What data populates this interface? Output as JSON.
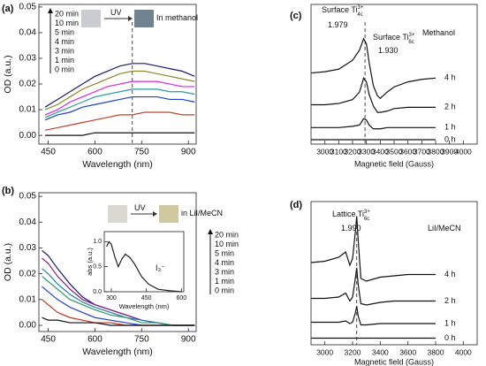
{
  "chart_data": [
    {
      "type": "line",
      "panel": "(a)",
      "xlabel": "Wavelength (nm)",
      "ylabel": "OD (a.u.)",
      "annotations": [
        {
          "text": "UV"
        },
        {
          "text": "In methanol"
        }
      ],
      "xlim": [
        420,
        925
      ],
      "ylim": [
        -0.0034,
        0.051
      ],
      "xticks": [
        450,
        600,
        750,
        900
      ],
      "yticks": [
        {
          "value": 0,
          "label": "0.00"
        },
        0.01,
        0.02,
        0.03,
        0.04,
        0.05
      ],
      "vlines": [
        720
      ],
      "x": [
        440,
        480,
        520,
        560,
        600,
        640,
        680,
        720,
        760,
        800,
        840,
        880,
        920
      ],
      "series": [
        {
          "name": "20 min",
          "color": "#1a1a6e",
          "values": [
            0.011,
            0.014,
            0.017,
            0.02,
            0.023,
            0.025,
            0.027,
            0.028,
            0.028,
            0.027,
            0.026,
            0.025,
            0.023
          ]
        },
        {
          "name": "10 min",
          "color": "#8a8a2a",
          "values": [
            0.01,
            0.012,
            0.015,
            0.018,
            0.02,
            0.022,
            0.024,
            0.025,
            0.025,
            0.024,
            0.023,
            0.022,
            0.021
          ]
        },
        {
          "name": "5 min",
          "color": "#e020e0",
          "values": [
            0.008,
            0.01,
            0.013,
            0.015,
            0.017,
            0.019,
            0.02,
            0.021,
            0.021,
            0.021,
            0.02,
            0.019,
            0.019
          ]
        },
        {
          "name": "4 min",
          "color": "#2a9a9a",
          "values": [
            0.007,
            0.009,
            0.011,
            0.013,
            0.015,
            0.016,
            0.017,
            0.018,
            0.018,
            0.018,
            0.017,
            0.017,
            0.016
          ]
        },
        {
          "name": "3 min",
          "color": "#1f3fd0",
          "values": [
            0.006,
            0.008,
            0.009,
            0.011,
            0.012,
            0.013,
            0.014,
            0.015,
            0.015,
            0.015,
            0.014,
            0.014,
            0.013
          ]
        },
        {
          "name": "1 min",
          "color": "#c0402a",
          "values": [
            0.002,
            0.003,
            0.004,
            0.005,
            0.006,
            0.007,
            0.008,
            0.008,
            0.009,
            0.009,
            0.009,
            0.008,
            0.008
          ]
        },
        {
          "name": "0 min",
          "color": "#111111",
          "values": [
            0.0,
            0.0,
            0.0,
            0.0,
            0.001,
            0.001,
            0.001,
            0.001,
            0.001,
            0.001,
            0.001,
            0.001,
            0.001
          ]
        }
      ]
    },
    {
      "type": "line",
      "panel": "(b)",
      "xlabel": "Wavelength (nm)",
      "ylabel": "OD (a.u.)",
      "annotations": [
        {
          "text": "UV"
        },
        {
          "text": "in LiI/MeCN"
        }
      ],
      "xlim": [
        420,
        925
      ],
      "ylim": [
        -0.0024,
        0.0514
      ],
      "xticks": [
        450,
        600,
        750,
        900
      ],
      "yticks": [
        {
          "value": 0,
          "label": "0.00"
        },
        0.01,
        0.02,
        0.03,
        0.04,
        0.05
      ],
      "x": [
        430,
        450,
        480,
        520,
        560,
        600,
        650,
        700,
        750,
        800,
        850,
        920
      ],
      "series": [
        {
          "name": "20 min",
          "color": "#1a1a6e",
          "values": [
            0.029,
            0.027,
            0.022,
            0.016,
            0.011,
            0.008,
            0.006,
            0.004,
            0.002,
            0.001,
            0.0,
            0.0
          ]
        },
        {
          "name": "10 min",
          "color": "#8b1a8b",
          "values": [
            0.026,
            0.024,
            0.019,
            0.014,
            0.01,
            0.008,
            0.006,
            0.004,
            0.002,
            0.001,
            0.0,
            0.0
          ]
        },
        {
          "name": "5 min",
          "color": "#2a7ab0",
          "values": [
            0.022,
            0.02,
            0.016,
            0.012,
            0.009,
            0.007,
            0.005,
            0.003,
            0.002,
            0.001,
            0.0,
            0.0
          ]
        },
        {
          "name": "4 min",
          "color": "#2a9a6a",
          "values": [
            0.019,
            0.017,
            0.014,
            0.01,
            0.008,
            0.006,
            0.004,
            0.003,
            0.001,
            0.001,
            0.0,
            0.0
          ]
        },
        {
          "name": "3 min",
          "color": "#2040d0",
          "values": [
            0.015,
            0.013,
            0.01,
            0.007,
            0.005,
            0.003,
            0.002,
            0.001,
            0.0,
            0.0,
            0.0,
            0.0
          ]
        },
        {
          "name": "1 min",
          "color": "#c03020",
          "values": [
            0.01,
            0.008,
            0.005,
            0.003,
            0.002,
            0.001,
            0.001,
            0.0,
            0.0,
            0.0,
            0.0,
            0.0
          ]
        },
        {
          "name": "0 min",
          "color": "#111111",
          "values": [
            0.003,
            0.002,
            0.002,
            0.001,
            0.001,
            0.001,
            0.0,
            0.0,
            0.0,
            0.0,
            0.0,
            0.0
          ]
        }
      ]
    },
    {
      "type": "line",
      "xlabel": "Wavelength (nm)",
      "ylabel": "abs (a.u.)",
      "annotations": [
        {
          "text": "I₃⁻"
        }
      ],
      "xlim": [
        270,
        610
      ],
      "ylim": [
        0,
        1.2
      ],
      "xticks": [
        300,
        450,
        600
      ],
      "yticks": [
        {
          "value": 0,
          "label": "0.0"
        },
        0.5,
        {
          "value": 1,
          "label": "1.0"
        }
      ],
      "x": [
        280,
        290,
        300,
        315,
        330,
        345,
        360,
        380,
        400,
        430,
        460,
        500,
        550,
        600
      ],
      "series": [
        {
          "color": "#222222",
          "values": [
            0.9,
            1.0,
            0.95,
            0.7,
            0.5,
            0.65,
            0.75,
            0.68,
            0.55,
            0.3,
            0.15,
            0.05,
            0.02,
            0.0
          ]
        }
      ]
    },
    {
      "type": "line",
      "panel": "(c)",
      "xlabel": "Magnetic field (Gauss)",
      "annotations": [
        {
          "text": "Surface Ti",
          "sup": "3+",
          "sub": "4c"
        },
        {
          "text": "1.979"
        },
        {
          "text": "Surface Ti",
          "sup": "3+",
          "sub": "6c"
        },
        {
          "text": "1.930"
        },
        {
          "text": "Methanol"
        }
      ],
      "xlim": [
        2900,
        4100
      ],
      "ylim": [
        0,
        11
      ],
      "xticks": [
        3000,
        3100,
        3200,
        3300,
        3400,
        3500,
        3600,
        3700,
        3800,
        3900,
        4000
      ],
      "vlines": [
        3290
      ],
      "x": [
        2900,
        3000,
        3100,
        3200,
        3250,
        3280,
        3300,
        3320,
        3350,
        3380,
        3400,
        3450,
        3500,
        3600,
        3700,
        3800
      ],
      "series": [
        {
          "name": "4 h",
          "color": "#111111",
          "values": [
            5.6,
            5.7,
            5.9,
            6.6,
            7.4,
            8.3,
            7.9,
            6.4,
            4.6,
            3.8,
            3.6,
            4.1,
            4.5,
            4.9,
            5.1,
            5.2
          ]
        },
        {
          "name": "2 h",
          "color": "#111111",
          "values": [
            3.1,
            3.1,
            3.2,
            3.5,
            4.1,
            5.2,
            4.9,
            3.9,
            3.0,
            2.5,
            2.5,
            2.6,
            2.8,
            2.9,
            2.9,
            2.9
          ]
        },
        {
          "name": "1 h",
          "color": "#111111",
          "values": [
            1.3,
            1.3,
            1.3,
            1.4,
            1.5,
            2.0,
            1.9,
            1.5,
            1.2,
            1.2,
            1.2,
            1.3,
            1.3,
            1.3,
            1.3,
            1.3
          ]
        },
        {
          "name": "0 h",
          "color": "#111111",
          "values": [
            0.35,
            0.35,
            0.35,
            0.35,
            0.35,
            0.35,
            0.35,
            0.35,
            0.35,
            0.35,
            0.35,
            0.35,
            0.35,
            0.35,
            0.35,
            0.35
          ]
        }
      ]
    },
    {
      "type": "line",
      "panel": "(d)",
      "xlabel": "Magnetic field (Gauss)",
      "annotations": [
        {
          "text": "Lattice Ti",
          "sup": "3+",
          "sub": "6c"
        },
        {
          "text": "1.990"
        },
        {
          "text": "LiI/MeCN"
        }
      ],
      "xlim": [
        2900,
        4100
      ],
      "ylim": [
        0,
        10.8
      ],
      "xticks": [
        3000,
        3200,
        3400,
        3600,
        3800,
        4000
      ],
      "vlines": [
        3230
      ],
      "x": [
        2900,
        3000,
        3100,
        3150,
        3180,
        3200,
        3220,
        3230,
        3240,
        3260,
        3300,
        3400,
        3500,
        3600,
        3700,
        3800
      ],
      "series": [
        {
          "name": "4 h",
          "color": "#111111",
          "values": [
            6.2,
            6.3,
            6.6,
            7.0,
            6.0,
            6.5,
            8.5,
            9.7,
            8.0,
            5.0,
            4.8,
            5.1,
            5.2,
            5.3,
            5.3,
            5.3
          ]
        },
        {
          "name": "2 h",
          "color": "#111111",
          "values": [
            3.5,
            3.5,
            3.6,
            3.9,
            3.3,
            3.6,
            5.0,
            5.8,
            4.6,
            3.1,
            3.0,
            3.2,
            3.3,
            3.3,
            3.3,
            3.3
          ]
        },
        {
          "name": "1 h",
          "color": "#111111",
          "values": [
            1.7,
            1.7,
            1.7,
            1.8,
            1.6,
            1.7,
            2.4,
            2.9,
            2.2,
            1.5,
            1.5,
            1.6,
            1.6,
            1.6,
            1.6,
            1.6
          ]
        },
        {
          "name": "0 h",
          "color": "#111111",
          "values": [
            0.5,
            0.5,
            0.5,
            0.5,
            0.5,
            0.5,
            0.5,
            0.5,
            0.5,
            0.5,
            0.5,
            0.5,
            0.5,
            0.5,
            0.5,
            0.5
          ]
        }
      ]
    }
  ]
}
